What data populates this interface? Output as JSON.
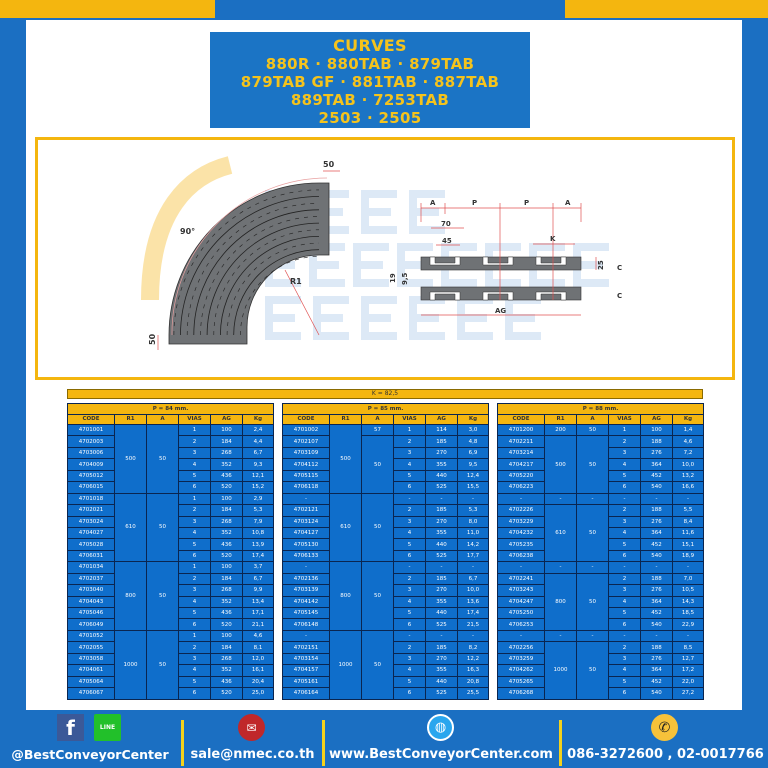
{
  "title": {
    "lines": [
      "CURVES",
      "880R · 880TAB · 879TAB",
      "879TAB GF · 881TAB · 887TAB",
      "889TAB · 7253TAB",
      "2503 · 2505"
    ]
  },
  "watermark": {
    "text": [
      "BEST",
      "CONVEYOR",
      "CENTER"
    ]
  },
  "diagram": {
    "angle_label": "90°",
    "ext_top": "50",
    "ext_bottom": "50",
    "radius_label": "R1",
    "dims": {
      "a_left": "A",
      "p1": "P",
      "p2": "P",
      "a_right": "A",
      "d70": "70",
      "d45": "45",
      "k": "K",
      "d19": "19",
      "d95": "9,5",
      "d25": "25",
      "c_top": "C",
      "c_bottom": "C",
      "ag": "AG"
    }
  },
  "k_label": "K = 82,5",
  "columns": [
    "CODE",
    "R1",
    "A",
    "VIAS",
    "AG",
    "Kg"
  ],
  "tables": [
    {
      "pitch": "P = 84 mm.",
      "groups": [
        {
          "r1": [
            {
              "value": "500",
              "span": 6
            }
          ],
          "a": [
            {
              "value": "50",
              "span": 6
            }
          ],
          "rows": [
            [
              "4701001",
              "1",
              "100",
              "2,4"
            ],
            [
              "4702003",
              "2",
              "184",
              "4,4"
            ],
            [
              "4703006",
              "3",
              "268",
              "6,7"
            ],
            [
              "4704009",
              "4",
              "352",
              "9,3"
            ],
            [
              "4705012",
              "5",
              "436",
              "12,1"
            ],
            [
              "4706015",
              "6",
              "520",
              "15,2"
            ]
          ]
        },
        {
          "r1": [
            {
              "value": "610",
              "span": 6
            }
          ],
          "a": [
            {
              "value": "50",
              "span": 6
            }
          ],
          "rows": [
            [
              "4701018",
              "1",
              "100",
              "2,9"
            ],
            [
              "4702021",
              "2",
              "184",
              "5,3"
            ],
            [
              "4703024",
              "3",
              "268",
              "7,9"
            ],
            [
              "4704027",
              "4",
              "352",
              "10,8"
            ],
            [
              "4705028",
              "5",
              "436",
              "13,9"
            ],
            [
              "4706031",
              "6",
              "520",
              "17,4"
            ]
          ]
        },
        {
          "r1": [
            {
              "value": "800",
              "span": 6
            }
          ],
          "a": [
            {
              "value": "50",
              "span": 6
            }
          ],
          "rows": [
            [
              "4701034",
              "1",
              "100",
              "3,7"
            ],
            [
              "4702037",
              "2",
              "184",
              "6,7"
            ],
            [
              "4703040",
              "3",
              "268",
              "9,9"
            ],
            [
              "4704043",
              "4",
              "352",
              "13,4"
            ],
            [
              "4705046",
              "5",
              "436",
              "17,1"
            ],
            [
              "4706049",
              "6",
              "520",
              "21,1"
            ]
          ]
        },
        {
          "r1": [
            {
              "value": "1000",
              "span": 6
            }
          ],
          "a": [
            {
              "value": "50",
              "span": 6
            }
          ],
          "rows": [
            [
              "4701052",
              "1",
              "100",
              "4,6"
            ],
            [
              "4702055",
              "2",
              "184",
              "8,1"
            ],
            [
              "4703058",
              "3",
              "268",
              "12,0"
            ],
            [
              "4704061",
              "4",
              "352",
              "16,1"
            ],
            [
              "4705064",
              "5",
              "436",
              "20,4"
            ],
            [
              "4706067",
              "6",
              "520",
              "25,0"
            ]
          ]
        }
      ]
    },
    {
      "pitch": "P = 85 mm.",
      "groups": [
        {
          "r1": [
            {
              "value": "500",
              "span": 6
            }
          ],
          "a": [
            {
              "value": "57",
              "span": 1
            },
            {
              "value": "50",
              "span": 5
            }
          ],
          "rows": [
            [
              "4701002",
              "1",
              "114",
              "3,0"
            ],
            [
              "4702107",
              "2",
              "185",
              "4,8"
            ],
            [
              "4703109",
              "3",
              "270",
              "6,9"
            ],
            [
              "4704112",
              "4",
              "355",
              "9,5"
            ],
            [
              "4705115",
              "5",
              "440",
              "12,4"
            ],
            [
              "4706118",
              "6",
              "525",
              "15,5"
            ]
          ]
        },
        {
          "r1": [
            {
              "value": "610",
              "span": 6
            }
          ],
          "a": [
            {
              "value": "50",
              "span": 6
            }
          ],
          "rows": [
            [
              "-",
              "-",
              "-",
              "-"
            ],
            [
              "4702121",
              "2",
              "185",
              "5,3"
            ],
            [
              "4703124",
              "3",
              "270",
              "8,0"
            ],
            [
              "4704127",
              "4",
              "355",
              "11,0"
            ],
            [
              "4705130",
              "5",
              "440",
              "14,2"
            ],
            [
              "4706133",
              "6",
              "525",
              "17,7"
            ]
          ]
        },
        {
          "r1": [
            {
              "value": "800",
              "span": 6
            }
          ],
          "a": [
            {
              "value": "50",
              "span": 6
            }
          ],
          "rows": [
            [
              "-",
              "-",
              "-",
              "-"
            ],
            [
              "4702136",
              "2",
              "185",
              "6,7"
            ],
            [
              "4703139",
              "3",
              "270",
              "10,0"
            ],
            [
              "4704142",
              "4",
              "355",
              "13,6"
            ],
            [
              "4705145",
              "5",
              "440",
              "17,4"
            ],
            [
              "4706148",
              "6",
              "525",
              "21,5"
            ]
          ]
        },
        {
          "r1": [
            {
              "value": "1000",
              "span": 6
            }
          ],
          "a": [
            {
              "value": "50",
              "span": 6
            }
          ],
          "rows": [
            [
              "-",
              "-",
              "-",
              "-"
            ],
            [
              "4702151",
              "2",
              "185",
              "8,2"
            ],
            [
              "4703154",
              "3",
              "270",
              "12,2"
            ],
            [
              "4704157",
              "4",
              "355",
              "16,3"
            ],
            [
              "4705161",
              "5",
              "440",
              "20,8"
            ],
            [
              "4706164",
              "6",
              "525",
              "25,5"
            ]
          ]
        }
      ]
    },
    {
      "pitch": "P = 88 mm.",
      "groups": [
        {
          "r1": [
            {
              "value": "200",
              "span": 1
            },
            {
              "value": "500",
              "span": 5
            }
          ],
          "a": [
            {
              "value": "50",
              "span": 1
            },
            {
              "value": "50",
              "span": 5
            }
          ],
          "rows": [
            [
              "4701200",
              "1",
              "100",
              "1,4"
            ],
            [
              "4702211",
              "2",
              "188",
              "4,6"
            ],
            [
              "4703214",
              "3",
              "276",
              "7,2"
            ],
            [
              "4704217",
              "4",
              "364",
              "10,0"
            ],
            [
              "4705220",
              "5",
              "452",
              "13,2"
            ],
            [
              "4706223",
              "6",
              "540",
              "16,6"
            ]
          ]
        },
        {
          "r1": [
            {
              "value": "-",
              "span": 1
            },
            {
              "value": "610",
              "span": 5
            }
          ],
          "a": [
            {
              "value": "-",
              "span": 1
            },
            {
              "value": "50",
              "span": 5
            }
          ],
          "rows": [
            [
              "-",
              "-",
              "-",
              "-"
            ],
            [
              "4702226",
              "2",
              "188",
              "5,5"
            ],
            [
              "4703229",
              "3",
              "276",
              "8,4"
            ],
            [
              "4704232",
              "4",
              "364",
              "11,6"
            ],
            [
              "4705235",
              "5",
              "452",
              "15,1"
            ],
            [
              "4706238",
              "6",
              "540",
              "18,9"
            ]
          ]
        },
        {
          "r1": [
            {
              "value": "-",
              "span": 1
            },
            {
              "value": "800",
              "span": 5
            }
          ],
          "a": [
            {
              "value": "-",
              "span": 1
            },
            {
              "value": "50",
              "span": 5
            }
          ],
          "rows": [
            [
              "-",
              "-",
              "-",
              "-"
            ],
            [
              "4702241",
              "2",
              "188",
              "7,0"
            ],
            [
              "4703243",
              "3",
              "276",
              "10,5"
            ],
            [
              "4704247",
              "4",
              "364",
              "14,3"
            ],
            [
              "4705250",
              "5",
              "452",
              "18,5"
            ],
            [
              "4706253",
              "6",
              "540",
              "22,9"
            ]
          ]
        },
        {
          "r1": [
            {
              "value": "-",
              "span": 1
            },
            {
              "value": "1000",
              "span": 5
            }
          ],
          "a": [
            {
              "value": "-",
              "span": 1
            },
            {
              "value": "50",
              "span": 5
            }
          ],
          "rows": [
            [
              "-",
              "-",
              "-",
              "-"
            ],
            [
              "4702256",
              "2",
              "188",
              "8,5"
            ],
            [
              "4703259",
              "3",
              "276",
              "12,7"
            ],
            [
              "4704262",
              "4",
              "364",
              "17,2"
            ],
            [
              "4705265",
              "5",
              "452",
              "22,0"
            ],
            [
              "4706268",
              "6",
              "540",
              "27,2"
            ]
          ]
        }
      ]
    }
  ],
  "footer": {
    "social": "@BestConveyorCenter",
    "email": "sale@nmec.co.th",
    "website": "www.BestConveyorCenter.com",
    "phone": "086-3272600 , 02-0017766",
    "line_label": "LINE",
    "facebook_label": "f"
  },
  "colors": {
    "brand_blue": "#1b6fc2",
    "accent_yellow": "#f4b60f",
    "cell_blue": "#0f6ecb",
    "dim_red": "#e0303a"
  }
}
